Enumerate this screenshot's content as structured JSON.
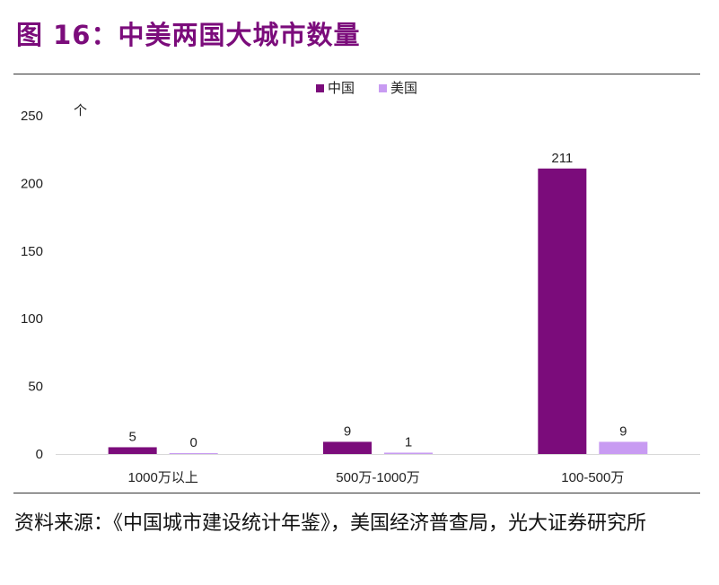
{
  "figure": {
    "title": "图 16：中美两国大城市数量",
    "source": "资料来源：《中国城市建设统计年鉴》，美国经济普查局，光大证券研究所"
  },
  "colors": {
    "title": "#7b0c7b",
    "china": "#7b0c7b",
    "usa": "#c89bf2"
  },
  "chart_data": {
    "type": "bar",
    "title": "",
    "xlabel": "",
    "ylabel": "个",
    "ylim": [
      0,
      250
    ],
    "yticks": [
      0,
      50,
      100,
      150,
      200,
      250
    ],
    "categories": [
      "1000万以上",
      "500万-1000万",
      "100-500万"
    ],
    "series": [
      {
        "name": "中国",
        "values": [
          5,
          9,
          211
        ]
      },
      {
        "name": "美国",
        "values": [
          0,
          1,
          9
        ]
      }
    ],
    "legend": "top-center",
    "grid": false
  }
}
